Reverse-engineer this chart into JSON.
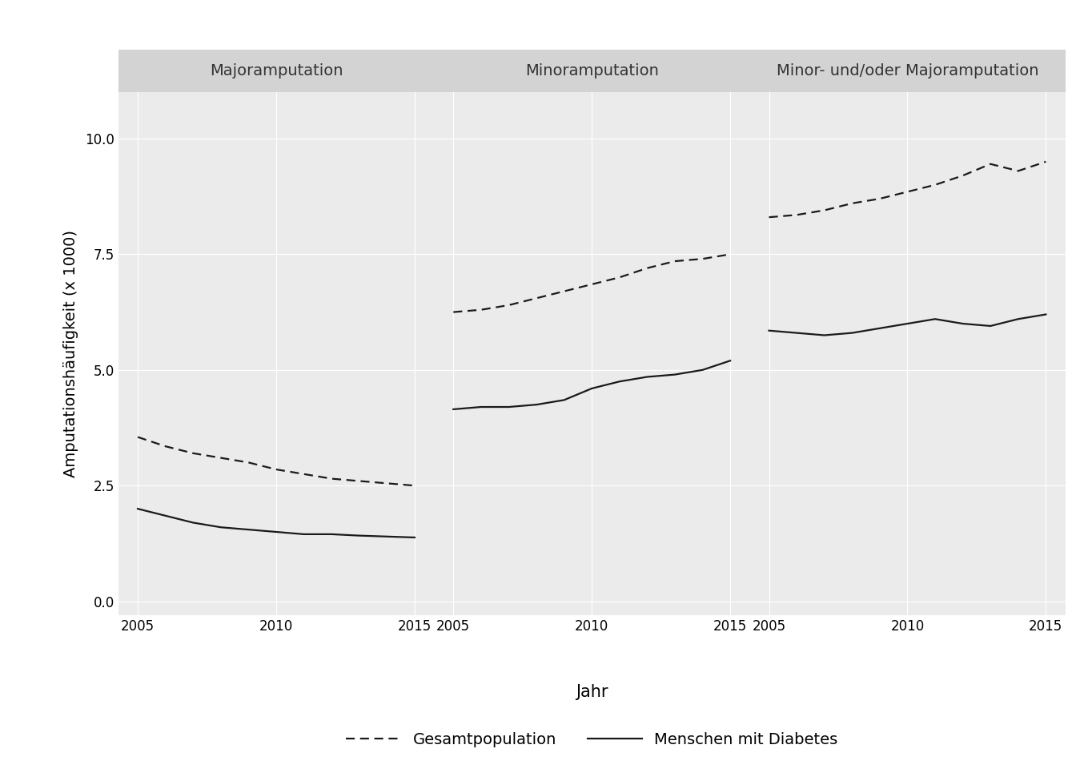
{
  "years": [
    2005,
    2006,
    2007,
    2008,
    2009,
    2010,
    2011,
    2012,
    2013,
    2014,
    2015
  ],
  "panels": [
    {
      "title": "Majoramputation",
      "dashed": [
        3.55,
        3.35,
        3.2,
        3.1,
        3.0,
        2.85,
        2.75,
        2.65,
        2.6,
        2.55,
        2.5
      ],
      "solid": [
        2.0,
        1.85,
        1.7,
        1.6,
        1.55,
        1.5,
        1.45,
        1.45,
        1.42,
        1.4,
        1.38
      ]
    },
    {
      "title": "Minoramputation",
      "dashed": [
        6.25,
        6.3,
        6.4,
        6.55,
        6.7,
        6.85,
        7.0,
        7.2,
        7.35,
        7.4,
        7.5
      ],
      "solid": [
        4.15,
        4.2,
        4.2,
        4.25,
        4.35,
        4.6,
        4.75,
        4.85,
        4.9,
        5.0,
        5.2
      ]
    },
    {
      "title": "Minor- und/oder Majoramputation",
      "dashed": [
        8.3,
        8.35,
        8.45,
        8.6,
        8.7,
        8.85,
        9.0,
        9.2,
        9.45,
        9.3,
        9.5
      ],
      "solid": [
        5.85,
        5.8,
        5.75,
        5.8,
        5.9,
        6.0,
        6.1,
        6.0,
        5.95,
        6.1,
        6.2
      ]
    }
  ],
  "ylim": [
    -0.3,
    11.0
  ],
  "yticks": [
    0.0,
    2.5,
    5.0,
    7.5,
    10.0
  ],
  "xticks": [
    2005,
    2010,
    2015
  ],
  "ylabel": "Amputationshäufigkeit (x 1000)",
  "xlabel": "Jahr",
  "legend_dashed_label": "Gesamtpopulation",
  "legend_solid_label": "Menschen mit Diabetes",
  "bg_color": "#EBEBEB",
  "strip_color": "#D3D3D3",
  "grid_color": "#FFFFFF",
  "line_color": "#1A1A1A",
  "title_font_size": 14,
  "label_font_size": 14,
  "tick_font_size": 12,
  "legend_font_size": 14,
  "line_width": 1.6
}
